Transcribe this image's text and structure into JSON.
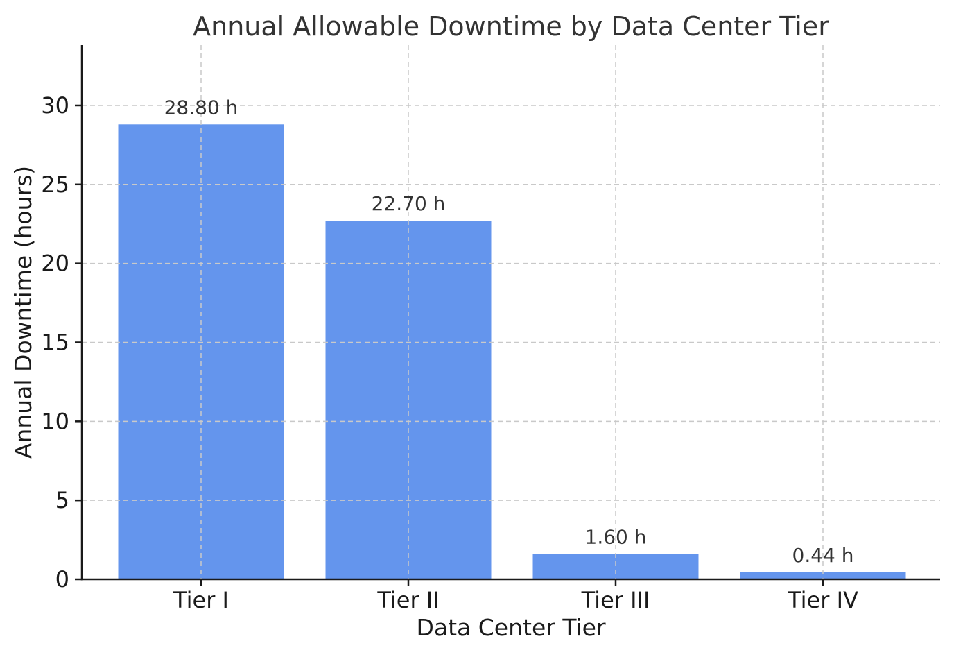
{
  "chart_data": {
    "type": "bar",
    "title": "Annual Allowable Downtime by Data Center Tier",
    "xlabel": "Data Center Tier",
    "ylabel": "Annual Downtime (hours)",
    "categories": [
      "Tier I",
      "Tier II",
      "Tier III",
      "Tier IV"
    ],
    "values": [
      28.8,
      22.7,
      1.6,
      0.44
    ],
    "bar_labels": [
      "28.80 h",
      "22.70 h",
      "1.60 h",
      "0.44 h"
    ],
    "yticks": [
      0,
      5,
      10,
      15,
      20,
      25,
      30
    ],
    "ylim": [
      0,
      33.82
    ],
    "grid": {
      "visible": true,
      "style": "dashed",
      "color": "#c9c9c9"
    },
    "colors": {
      "bar": "#6495ED",
      "background": "#ffffff",
      "spine": "#1a1a1a",
      "tick_text": "#1a1a1a",
      "title_text": "#333333"
    },
    "legend": "none"
  }
}
